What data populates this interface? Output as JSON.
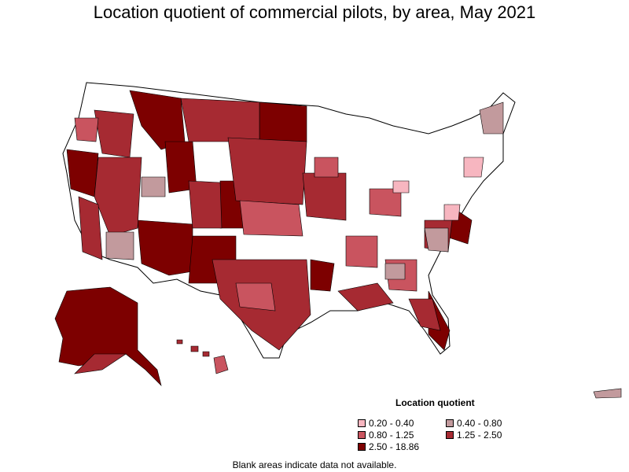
{
  "title": "Location quotient of commercial pilots, by area, May 2021",
  "legend": {
    "title": "Location quotient",
    "items": [
      {
        "label": "0.20 - 0.40",
        "color": "#f7b6c0"
      },
      {
        "label": "0.40 - 0.80",
        "color": "#c29a9d"
      },
      {
        "label": "0.80 - 1.25",
        "color": "#c9545f"
      },
      {
        "label": "1.25 - 2.50",
        "color": "#a62a32"
      },
      {
        "label": "2.50 - 18.86",
        "color": "#7d0000"
      }
    ]
  },
  "footnote": "Blank areas indicate data not available.",
  "colors": {
    "no_data": "#ffffff",
    "border": "#000000"
  }
}
